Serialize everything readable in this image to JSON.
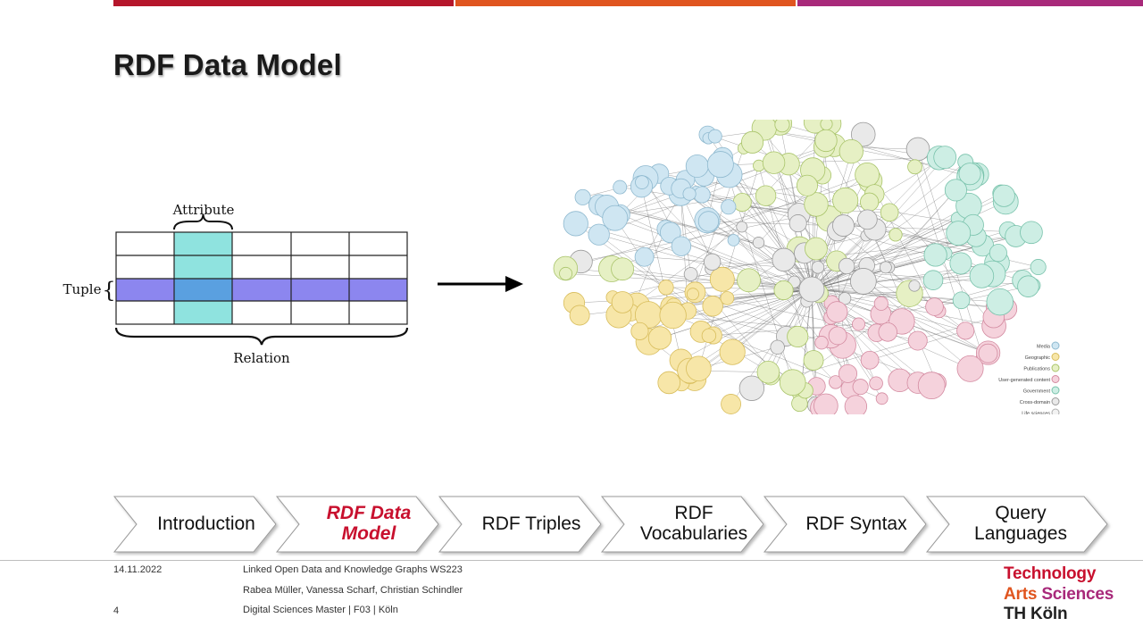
{
  "slide": {
    "title": "RDF Data Model",
    "diagram": {
      "attribute_label": "Attribute",
      "tuple_label": "Tuple",
      "relation_label": "Relation"
    }
  },
  "nav": {
    "items": [
      {
        "label": "Introduction",
        "active": false
      },
      {
        "label": "RDF Data Model",
        "active": true
      },
      {
        "label": "RDF Triples",
        "active": false
      },
      {
        "label": "RDF Vocabularies",
        "active": false
      },
      {
        "label": "RDF Syntax",
        "active": false
      },
      {
        "label": "Query Languages",
        "active": false
      }
    ]
  },
  "footer": {
    "date": "14.11.2022",
    "course": "Linked Open Data and Knowledge Graphs WS223",
    "authors": "Rabea Müller, Vanessa Scharf, Christian Schindler",
    "page_number": "4",
    "program": "Digital Sciences Master | F03 | Köln"
  },
  "logo": {
    "line1": "Technology",
    "line2a": "Arts",
    "line2b": "Sciences",
    "line3": "TH Köln"
  },
  "graph_legend": [
    "Media",
    "Geographic",
    "Publications",
    "User-generated content",
    "Government",
    "Cross-domain",
    "Life sciences"
  ],
  "colors": {
    "accent_red": "#b5162b",
    "accent_orange": "#e0551f",
    "accent_purple": "#a8297a",
    "attribute_column": "#8fe3df",
    "tuple_row": "#8c86ef",
    "active_nav": "#c8102e"
  }
}
